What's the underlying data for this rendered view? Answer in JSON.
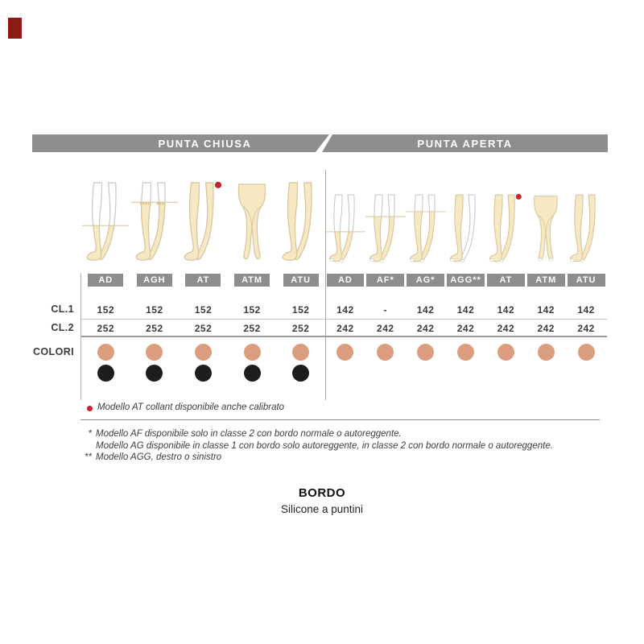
{
  "brand_mark": {
    "color": "#8e1a14"
  },
  "header": {
    "closed": "PUNTA CHIUSA",
    "open": "PUNTA APERTA"
  },
  "row_labels": {
    "cl1": "CL.1",
    "cl2": "CL.2",
    "colori": "COLORI"
  },
  "table": {
    "sections": [
      {
        "id": "closed",
        "toe": "closed",
        "columns": [
          {
            "model": "AD",
            "variant": "knee",
            "cl1": "152",
            "cl2": "252",
            "dots": [
              "beige",
              "black"
            ]
          },
          {
            "model": "AGH",
            "variant": "thigh-band",
            "cl1": "152",
            "cl2": "252",
            "dots": [
              "beige",
              "black"
            ]
          },
          {
            "model": "AT",
            "variant": "full-reddot",
            "cl1": "152",
            "cl2": "252",
            "dots": [
              "beige",
              "black"
            ]
          },
          {
            "model": "ATM",
            "variant": "front",
            "cl1": "152",
            "cl2": "252",
            "dots": [
              "beige",
              "black"
            ]
          },
          {
            "model": "ATU",
            "variant": "full",
            "cl1": "152",
            "cl2": "252",
            "dots": [
              "beige",
              "black"
            ]
          }
        ]
      },
      {
        "id": "open",
        "toe": "open",
        "columns": [
          {
            "model": "AD",
            "variant": "knee",
            "cl1": "142",
            "cl2": "242",
            "dots": [
              "beige"
            ]
          },
          {
            "model": "AF*",
            "variant": "thigh-low",
            "cl1": "-",
            "cl2": "242",
            "dots": [
              "beige"
            ]
          },
          {
            "model": "AG*",
            "variant": "thigh",
            "cl1": "142",
            "cl2": "242",
            "dots": [
              "beige"
            ]
          },
          {
            "model": "AGG**",
            "variant": "single-leg",
            "cl1": "142",
            "cl2": "242",
            "dots": [
              "beige"
            ]
          },
          {
            "model": "AT",
            "variant": "full-reddot",
            "cl1": "142",
            "cl2": "242",
            "dots": [
              "beige"
            ]
          },
          {
            "model": "ATM",
            "variant": "front",
            "cl1": "142",
            "cl2": "242",
            "dots": [
              "beige"
            ]
          },
          {
            "model": "ATU",
            "variant": "full",
            "cl1": "142",
            "cl2": "242",
            "dots": [
              "beige"
            ]
          }
        ]
      }
    ]
  },
  "footnotes": {
    "red_dot_note": "Modello AT collant disponibile anche calibrato",
    "star1_mark": "*",
    "star1_line1": "Modello AF disponibile solo in classe 2 con bordo normale o autoreggente.",
    "star1_line2": "Modello AG disponibile in classe 1 con bordo solo autoreggente, in classe 2 con bordo normale o autoreggente.",
    "star2_mark": "**",
    "star2_line": "Modello AGG, destro o sinistro"
  },
  "bordo": {
    "title": "BORDO",
    "subtitle": "Silicone a puntini"
  },
  "colors": {
    "bar_gray": "#8e8e8e",
    "badge_gray": "#8d8d8d",
    "beige_dot": "#db9d7e",
    "black_dot": "#1d1d1b",
    "red": "#c8232c",
    "red_dark": "#8e1a14",
    "skin": "#f6e8c3",
    "outline": "#c9c9c9",
    "stocking_outline": "#d8c8a0",
    "line_light": "#c6c6c6",
    "line_dark": "#9a9a9a",
    "text": "#3b3b3b"
  }
}
